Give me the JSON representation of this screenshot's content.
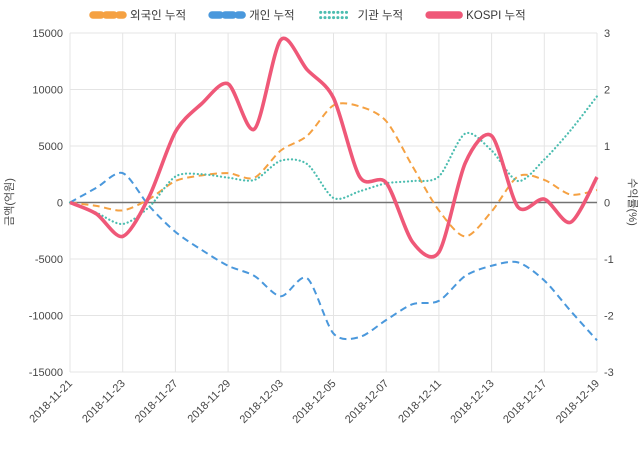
{
  "chart_data": {
    "type": "line",
    "title": "",
    "ylabel_left": "금액(억원)",
    "ylabel_right": "수익률(%)",
    "ylim_left": [
      -15000,
      15000
    ],
    "ylim_right": [
      -3,
      3
    ],
    "yticks_left": [
      15000,
      10000,
      5000,
      0,
      -5000,
      -10000,
      -15000
    ],
    "yticks_right": [
      3,
      2,
      1,
      0,
      -1,
      -2,
      -3
    ],
    "grid": true,
    "legend_position": "top",
    "x": [
      "2018-11-21",
      "2018-11-22",
      "2018-11-23",
      "2018-11-26",
      "2018-11-27",
      "2018-11-28",
      "2018-11-29",
      "2018-11-30",
      "2018-12-03",
      "2018-12-04",
      "2018-12-05",
      "2018-12-06",
      "2018-12-07",
      "2018-12-10",
      "2018-12-11",
      "2018-12-12",
      "2018-12-13",
      "2018-12-14",
      "2018-12-17",
      "2018-12-18",
      "2018-12-19"
    ],
    "x_tick_labels": [
      "2018-11-21",
      "2018-11-23",
      "2018-11-27",
      "2018-11-29",
      "2018-12-03",
      "2018-12-05",
      "2018-12-07",
      "2018-12-11",
      "2018-12-13",
      "2018-12-17",
      "2018-12-19"
    ],
    "series": [
      {
        "name": "외국인 누적",
        "axis": "left",
        "line_style": "dashed",
        "color": "#f5a142",
        "values": [
          0,
          -300,
          -700,
          300,
          1900,
          2400,
          2600,
          2200,
          4600,
          5900,
          8600,
          8500,
          7200,
          3200,
          -700,
          -3000,
          -800,
          2300,
          2000,
          700,
          1100
        ]
      },
      {
        "name": "개인 누적",
        "axis": "left",
        "line_style": "dashed",
        "color": "#4a98dc",
        "values": [
          0,
          1300,
          2600,
          -300,
          -2600,
          -4200,
          -5600,
          -6500,
          -8300,
          -6700,
          -11600,
          -11900,
          -10400,
          -9000,
          -8700,
          -6500,
          -5600,
          -5300,
          -6900,
          -9600,
          -12200
        ]
      },
      {
        "name": "기관 누적",
        "axis": "left",
        "line_style": "dotted",
        "color": "#4cbdb0",
        "values": [
          0,
          -900,
          -1900,
          -400,
          2300,
          2500,
          2200,
          2000,
          3700,
          3400,
          400,
          1000,
          1700,
          1900,
          2300,
          6100,
          4600,
          1900,
          3800,
          6400,
          9400
        ]
      },
      {
        "name": "KOSPI 누적",
        "axis": "right",
        "line_style": "solid",
        "color": "#ef5878",
        "values": [
          0,
          -0.2,
          -0.6,
          0.1,
          1.25,
          1.75,
          2.1,
          1.3,
          2.88,
          2.35,
          1.85,
          0.45,
          0.35,
          -0.7,
          -0.88,
          0.7,
          1.18,
          -0.08,
          0.06,
          -0.35,
          0.45
        ]
      }
    ]
  }
}
